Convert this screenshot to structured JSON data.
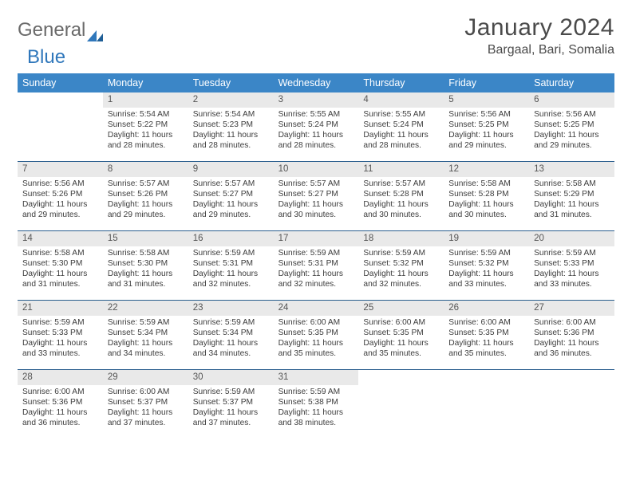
{
  "brand": {
    "word1": "General",
    "word2": "Blue"
  },
  "title": "January 2024",
  "location": "Bargaal, Bari, Somalia",
  "colors": {
    "header_bg": "#3b86c7",
    "header_text": "#ffffff",
    "num_bar_bg": "#e9e9e9",
    "week_border": "#2a5e8e",
    "logo_gray": "#6a6a6a",
    "logo_blue": "#2f77bb"
  },
  "day_names": [
    "Sunday",
    "Monday",
    "Tuesday",
    "Wednesday",
    "Thursday",
    "Friday",
    "Saturday"
  ],
  "first_weekday_index": 1,
  "days": [
    {
      "n": 1,
      "sunrise": "5:54 AM",
      "sunset": "5:22 PM",
      "daylight": "11 hours and 28 minutes."
    },
    {
      "n": 2,
      "sunrise": "5:54 AM",
      "sunset": "5:23 PM",
      "daylight": "11 hours and 28 minutes."
    },
    {
      "n": 3,
      "sunrise": "5:55 AM",
      "sunset": "5:24 PM",
      "daylight": "11 hours and 28 minutes."
    },
    {
      "n": 4,
      "sunrise": "5:55 AM",
      "sunset": "5:24 PM",
      "daylight": "11 hours and 28 minutes."
    },
    {
      "n": 5,
      "sunrise": "5:56 AM",
      "sunset": "5:25 PM",
      "daylight": "11 hours and 29 minutes."
    },
    {
      "n": 6,
      "sunrise": "5:56 AM",
      "sunset": "5:25 PM",
      "daylight": "11 hours and 29 minutes."
    },
    {
      "n": 7,
      "sunrise": "5:56 AM",
      "sunset": "5:26 PM",
      "daylight": "11 hours and 29 minutes."
    },
    {
      "n": 8,
      "sunrise": "5:57 AM",
      "sunset": "5:26 PM",
      "daylight": "11 hours and 29 minutes."
    },
    {
      "n": 9,
      "sunrise": "5:57 AM",
      "sunset": "5:27 PM",
      "daylight": "11 hours and 29 minutes."
    },
    {
      "n": 10,
      "sunrise": "5:57 AM",
      "sunset": "5:27 PM",
      "daylight": "11 hours and 30 minutes."
    },
    {
      "n": 11,
      "sunrise": "5:57 AM",
      "sunset": "5:28 PM",
      "daylight": "11 hours and 30 minutes."
    },
    {
      "n": 12,
      "sunrise": "5:58 AM",
      "sunset": "5:28 PM",
      "daylight": "11 hours and 30 minutes."
    },
    {
      "n": 13,
      "sunrise": "5:58 AM",
      "sunset": "5:29 PM",
      "daylight": "11 hours and 31 minutes."
    },
    {
      "n": 14,
      "sunrise": "5:58 AM",
      "sunset": "5:30 PM",
      "daylight": "11 hours and 31 minutes."
    },
    {
      "n": 15,
      "sunrise": "5:58 AM",
      "sunset": "5:30 PM",
      "daylight": "11 hours and 31 minutes."
    },
    {
      "n": 16,
      "sunrise": "5:59 AM",
      "sunset": "5:31 PM",
      "daylight": "11 hours and 32 minutes."
    },
    {
      "n": 17,
      "sunrise": "5:59 AM",
      "sunset": "5:31 PM",
      "daylight": "11 hours and 32 minutes."
    },
    {
      "n": 18,
      "sunrise": "5:59 AM",
      "sunset": "5:32 PM",
      "daylight": "11 hours and 32 minutes."
    },
    {
      "n": 19,
      "sunrise": "5:59 AM",
      "sunset": "5:32 PM",
      "daylight": "11 hours and 33 minutes."
    },
    {
      "n": 20,
      "sunrise": "5:59 AM",
      "sunset": "5:33 PM",
      "daylight": "11 hours and 33 minutes."
    },
    {
      "n": 21,
      "sunrise": "5:59 AM",
      "sunset": "5:33 PM",
      "daylight": "11 hours and 33 minutes."
    },
    {
      "n": 22,
      "sunrise": "5:59 AM",
      "sunset": "5:34 PM",
      "daylight": "11 hours and 34 minutes."
    },
    {
      "n": 23,
      "sunrise": "5:59 AM",
      "sunset": "5:34 PM",
      "daylight": "11 hours and 34 minutes."
    },
    {
      "n": 24,
      "sunrise": "6:00 AM",
      "sunset": "5:35 PM",
      "daylight": "11 hours and 35 minutes."
    },
    {
      "n": 25,
      "sunrise": "6:00 AM",
      "sunset": "5:35 PM",
      "daylight": "11 hours and 35 minutes."
    },
    {
      "n": 26,
      "sunrise": "6:00 AM",
      "sunset": "5:35 PM",
      "daylight": "11 hours and 35 minutes."
    },
    {
      "n": 27,
      "sunrise": "6:00 AM",
      "sunset": "5:36 PM",
      "daylight": "11 hours and 36 minutes."
    },
    {
      "n": 28,
      "sunrise": "6:00 AM",
      "sunset": "5:36 PM",
      "daylight": "11 hours and 36 minutes."
    },
    {
      "n": 29,
      "sunrise": "6:00 AM",
      "sunset": "5:37 PM",
      "daylight": "11 hours and 37 minutes."
    },
    {
      "n": 30,
      "sunrise": "5:59 AM",
      "sunset": "5:37 PM",
      "daylight": "11 hours and 37 minutes."
    },
    {
      "n": 31,
      "sunrise": "5:59 AM",
      "sunset": "5:38 PM",
      "daylight": "11 hours and 38 minutes."
    }
  ],
  "labels": {
    "sunrise": "Sunrise:",
    "sunset": "Sunset:",
    "daylight": "Daylight:"
  }
}
